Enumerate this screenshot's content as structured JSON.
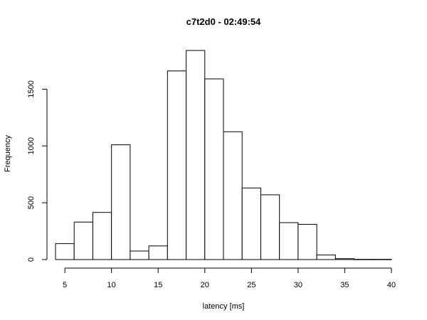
{
  "chart_data": {
    "type": "bar",
    "title": "c7t2d0 - 02:49:54",
    "xlabel": "latency [ms]",
    "ylabel": "Frequency",
    "bin_width": 2,
    "bins": [
      {
        "start": 4,
        "end": 6,
        "count": 140
      },
      {
        "start": 6,
        "end": 8,
        "count": 330
      },
      {
        "start": 8,
        "end": 10,
        "count": 415
      },
      {
        "start": 10,
        "end": 12,
        "count": 1010
      },
      {
        "start": 12,
        "end": 14,
        "count": 75
      },
      {
        "start": 14,
        "end": 16,
        "count": 120
      },
      {
        "start": 16,
        "end": 18,
        "count": 1660
      },
      {
        "start": 18,
        "end": 20,
        "count": 1840
      },
      {
        "start": 20,
        "end": 22,
        "count": 1590
      },
      {
        "start": 22,
        "end": 24,
        "count": 1125
      },
      {
        "start": 24,
        "end": 26,
        "count": 630
      },
      {
        "start": 26,
        "end": 28,
        "count": 570
      },
      {
        "start": 28,
        "end": 30,
        "count": 325
      },
      {
        "start": 30,
        "end": 32,
        "count": 310
      },
      {
        "start": 32,
        "end": 34,
        "count": 40
      },
      {
        "start": 34,
        "end": 36,
        "count": 8
      },
      {
        "start": 36,
        "end": 38,
        "count": 2
      },
      {
        "start": 38,
        "end": 40,
        "count": 2
      }
    ],
    "xlim": [
      4,
      40
    ],
    "ylim": [
      0,
      1840
    ],
    "x_ticks": [
      5,
      10,
      15,
      20,
      25,
      30,
      35,
      40
    ],
    "y_ticks": [
      0,
      500,
      1000,
      1500
    ],
    "grid": false,
    "legend": "none"
  }
}
